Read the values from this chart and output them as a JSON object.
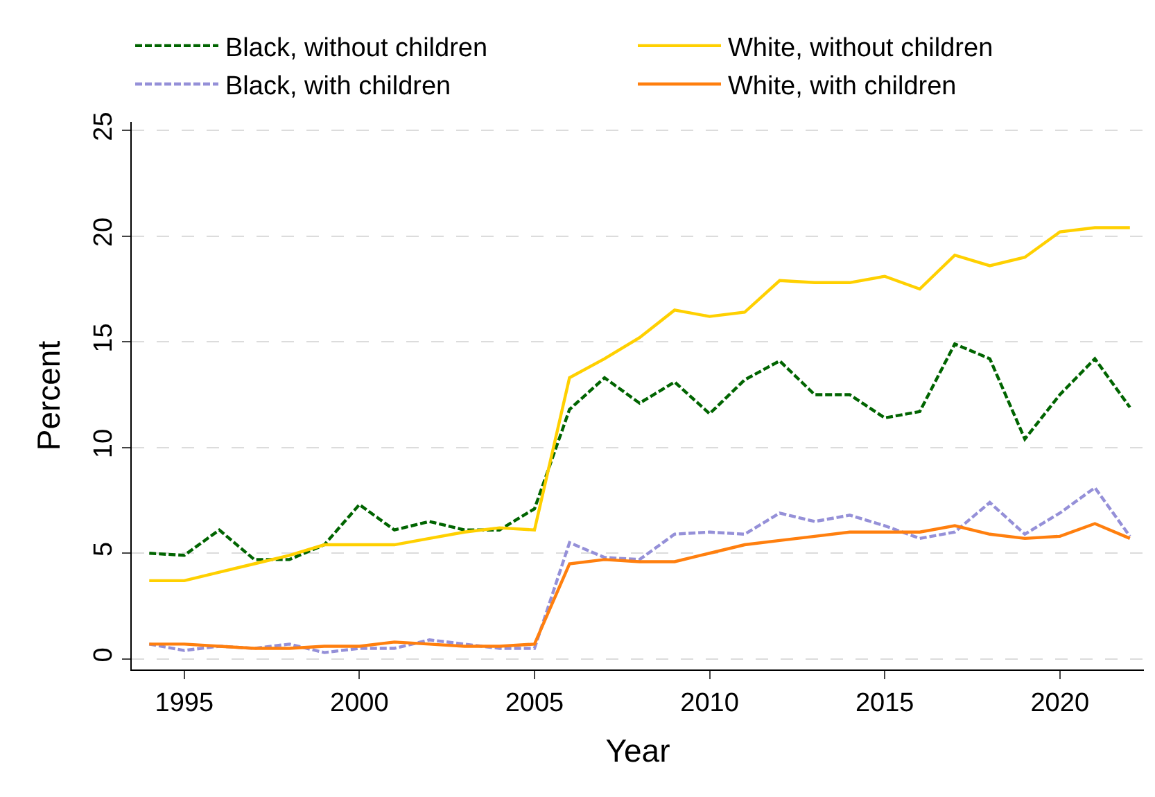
{
  "chart_data": {
    "type": "line",
    "xlabel": "Year",
    "ylabel": "Percent",
    "x": [
      1994,
      1995,
      1996,
      1997,
      1998,
      1999,
      2000,
      2001,
      2002,
      2003,
      2004,
      2005,
      2006,
      2007,
      2008,
      2009,
      2010,
      2011,
      2012,
      2013,
      2014,
      2015,
      2016,
      2017,
      2018,
      2019,
      2020,
      2021,
      2022
    ],
    "series": [
      {
        "name": "Black, without children",
        "color": "#006400",
        "line_style": "dashed",
        "values": [
          5.0,
          4.9,
          6.1,
          4.7,
          4.7,
          5.4,
          7.3,
          6.1,
          6.5,
          6.1,
          6.1,
          7.1,
          11.8,
          13.3,
          12.1,
          13.1,
          11.6,
          13.2,
          14.1,
          12.5,
          12.5,
          11.4,
          11.7,
          14.9,
          14.2,
          10.4,
          12.5,
          14.2,
          11.9
        ]
      },
      {
        "name": "White, without children",
        "color": "#ffd000",
        "line_style": "solid",
        "values": [
          3.7,
          3.7,
          4.1,
          4.5,
          4.9,
          5.4,
          5.4,
          5.4,
          5.7,
          6.0,
          6.2,
          6.1,
          13.3,
          14.2,
          15.2,
          16.5,
          16.2,
          16.4,
          17.9,
          17.8,
          17.8,
          18.1,
          17.5,
          19.1,
          18.6,
          19.0,
          20.2,
          20.4,
          20.4
        ]
      },
      {
        "name": "Black, with children",
        "color": "#9590d8",
        "line_style": "dashed",
        "values": [
          0.7,
          0.4,
          0.6,
          0.5,
          0.7,
          0.3,
          0.5,
          0.5,
          0.9,
          0.7,
          0.5,
          0.5,
          5.5,
          4.8,
          4.7,
          5.9,
          6.0,
          5.9,
          6.9,
          6.5,
          6.8,
          6.3,
          5.7,
          6.0,
          7.4,
          5.9,
          6.9,
          8.1,
          5.8
        ]
      },
      {
        "name": "White, with children",
        "color": "#ff7f0e",
        "line_style": "solid",
        "values": [
          0.7,
          0.7,
          0.6,
          0.5,
          0.5,
          0.6,
          0.6,
          0.8,
          0.7,
          0.6,
          0.6,
          0.7,
          4.5,
          4.7,
          4.6,
          4.6,
          5.0,
          5.4,
          5.6,
          5.8,
          6.0,
          6.0,
          6.0,
          6.3,
          5.9,
          5.7,
          5.8,
          6.4,
          5.7
        ]
      }
    ],
    "xlim": [
      1993.5,
      2022.4
    ],
    "xticks": [
      1995,
      2000,
      2005,
      2010,
      2015,
      2020
    ],
    "ylim": [
      -0.5,
      25.4
    ],
    "yticks": [
      0,
      5,
      10,
      15,
      20,
      25
    ],
    "grid": "y",
    "legend": "top",
    "marker": "none"
  }
}
